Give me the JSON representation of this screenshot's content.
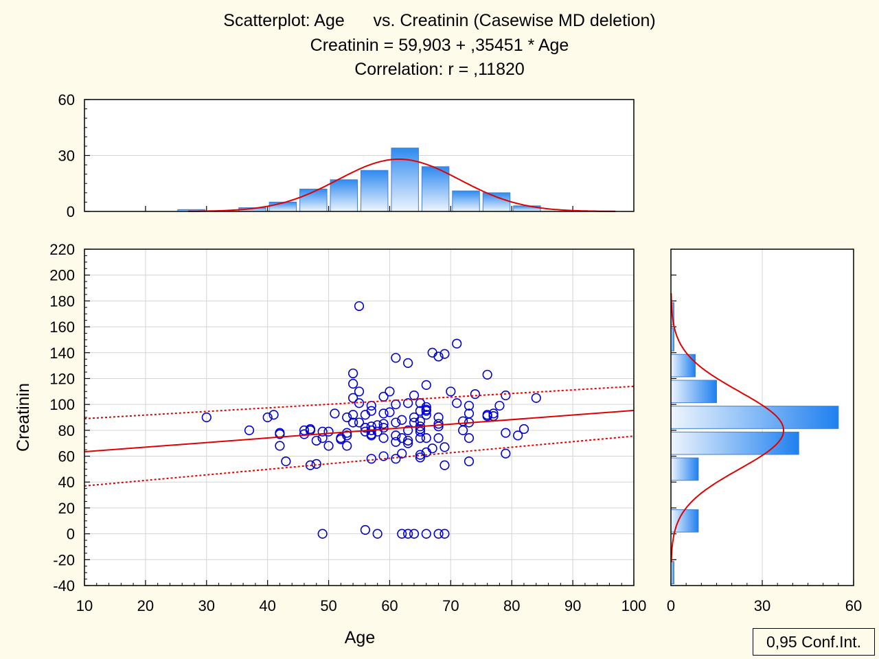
{
  "chart_data": [
    {
      "type": "scatter",
      "title_lines": [
        "Scatterplot: Age      vs. Creatinin (Casewise MD deletion)",
        "Creatinin = 59,903 + ,35451 * Age",
        "Correlation: r = ,11820"
      ],
      "xlabel": "Age",
      "ylabel": "Creatinin",
      "xlim": [
        10,
        100
      ],
      "ylim": [
        -40,
        220
      ],
      "xticks": [
        "10",
        "20",
        "30",
        "40",
        "50",
        "60",
        "70",
        "80",
        "90",
        "100"
      ],
      "yticks": [
        "-40",
        "-20",
        "0",
        "20",
        "40",
        "60",
        "80",
        "100",
        "120",
        "140",
        "160",
        "180",
        "200",
        "220"
      ],
      "grid": true,
      "regression": {
        "intercept": 59.903,
        "slope": 0.35451
      },
      "confidence_band": {
        "x": [
          10,
          100
        ],
        "upper": [
          89,
          114
        ],
        "lower": [
          37,
          75.5
        ]
      },
      "legend": {
        "label": "0,95 Conf.Int.",
        "placement": "bottom-right"
      },
      "points": [
        [
          30,
          90
        ],
        [
          37,
          80
        ],
        [
          40,
          90
        ],
        [
          41,
          92
        ],
        [
          42,
          78
        ],
        [
          42,
          77
        ],
        [
          42,
          68
        ],
        [
          43,
          56
        ],
        [
          46,
          80
        ],
        [
          46,
          77
        ],
        [
          47,
          81
        ],
        [
          47,
          80
        ],
        [
          47,
          53
        ],
        [
          48,
          54
        ],
        [
          48,
          72
        ],
        [
          49,
          79
        ],
        [
          49,
          74
        ],
        [
          49,
          0
        ],
        [
          50,
          79
        ],
        [
          50,
          68
        ],
        [
          51,
          93
        ],
        [
          52,
          74
        ],
        [
          52,
          73
        ],
        [
          53,
          90
        ],
        [
          53,
          78
        ],
        [
          53,
          76
        ],
        [
          53,
          68
        ],
        [
          54,
          124
        ],
        [
          54,
          116
        ],
        [
          54,
          105
        ],
        [
          54,
          92
        ],
        [
          54,
          86
        ],
        [
          55,
          176
        ],
        [
          55,
          110
        ],
        [
          55,
          101
        ],
        [
          55,
          86
        ],
        [
          56,
          92
        ],
        [
          56,
          82
        ],
        [
          56,
          79
        ],
        [
          56,
          3
        ],
        [
          57,
          99
        ],
        [
          57,
          95
        ],
        [
          57,
          83
        ],
        [
          57,
          80
        ],
        [
          57,
          77
        ],
        [
          57,
          76
        ],
        [
          57,
          58
        ],
        [
          58,
          84
        ],
        [
          58,
          79
        ],
        [
          58,
          0
        ],
        [
          59,
          106
        ],
        [
          59,
          93
        ],
        [
          59,
          85
        ],
        [
          59,
          82
        ],
        [
          59,
          74
        ],
        [
          59,
          60
        ],
        [
          60,
          110
        ],
        [
          60,
          94
        ],
        [
          61,
          136
        ],
        [
          61,
          100
        ],
        [
          61,
          86
        ],
        [
          61,
          76
        ],
        [
          61,
          71
        ],
        [
          61,
          58
        ],
        [
          62,
          88
        ],
        [
          62,
          74
        ],
        [
          62,
          62
        ],
        [
          62,
          0
        ],
        [
          63,
          132
        ],
        [
          63,
          101
        ],
        [
          63,
          80
        ],
        [
          63,
          72
        ],
        [
          63,
          70
        ],
        [
          63,
          0
        ],
        [
          64,
          107
        ],
        [
          64,
          90
        ],
        [
          64,
          86
        ],
        [
          64,
          0
        ],
        [
          65,
          101
        ],
        [
          65,
          95
        ],
        [
          65,
          87
        ],
        [
          65,
          83
        ],
        [
          65,
          81
        ],
        [
          65,
          79
        ],
        [
          65,
          74
        ],
        [
          65,
          61
        ],
        [
          65,
          59
        ],
        [
          66,
          115
        ],
        [
          66,
          98
        ],
        [
          66,
          96
        ],
        [
          66,
          95
        ],
        [
          66,
          92
        ],
        [
          66,
          74
        ],
        [
          66,
          63
        ],
        [
          66,
          0
        ],
        [
          67,
          140
        ],
        [
          67,
          66
        ],
        [
          68,
          137
        ],
        [
          68,
          90
        ],
        [
          68,
          85
        ],
        [
          68,
          83
        ],
        [
          68,
          74
        ],
        [
          68,
          0
        ],
        [
          69,
          139
        ],
        [
          69,
          67
        ],
        [
          69,
          53
        ],
        [
          69,
          0
        ],
        [
          70,
          110
        ],
        [
          71,
          147
        ],
        [
          71,
          101
        ],
        [
          72,
          87
        ],
        [
          72,
          80
        ],
        [
          73,
          99
        ],
        [
          73,
          93
        ],
        [
          73,
          86
        ],
        [
          73,
          74
        ],
        [
          73,
          56
        ],
        [
          74,
          108
        ],
        [
          76,
          123
        ],
        [
          76,
          92
        ],
        [
          76,
          91
        ],
        [
          77,
          93
        ],
        [
          77,
          91
        ],
        [
          78,
          99
        ],
        [
          79,
          107
        ],
        [
          79,
          78
        ],
        [
          79,
          62
        ],
        [
          81,
          76
        ],
        [
          82,
          81
        ],
        [
          84,
          105
        ]
      ]
    },
    {
      "type": "bar",
      "role": "Age histogram (top margin)",
      "categories": [
        "27.5",
        "32.5",
        "37.5",
        "42.5",
        "47.5",
        "52.5",
        "57.5",
        "62.5",
        "67.5",
        "72.5",
        "77.5",
        "82.5"
      ],
      "values": [
        1,
        0,
        2,
        5,
        12,
        17,
        22,
        34,
        24,
        11,
        10,
        3
      ],
      "yticks": [
        "0",
        "30",
        "60"
      ],
      "ylim": [
        0,
        60
      ],
      "normal_fit": {
        "mean": 61.5,
        "sd": 10,
        "peak": 28
      }
    },
    {
      "type": "bar",
      "role": "Creatinin histogram (right margin, horizontal)",
      "categories": [
        "-30",
        "-10",
        "10",
        "30",
        "50",
        "70",
        "90",
        "110",
        "130",
        "150",
        "170"
      ],
      "values": [
        1,
        0,
        9,
        0,
        9,
        42,
        55,
        15,
        8,
        1,
        1
      ],
      "xticks": [
        "0",
        "30",
        "60"
      ],
      "xlim": [
        0,
        60
      ],
      "normal_fit": {
        "mean": 80,
        "sd": 30,
        "peak": 37
      }
    }
  ]
}
